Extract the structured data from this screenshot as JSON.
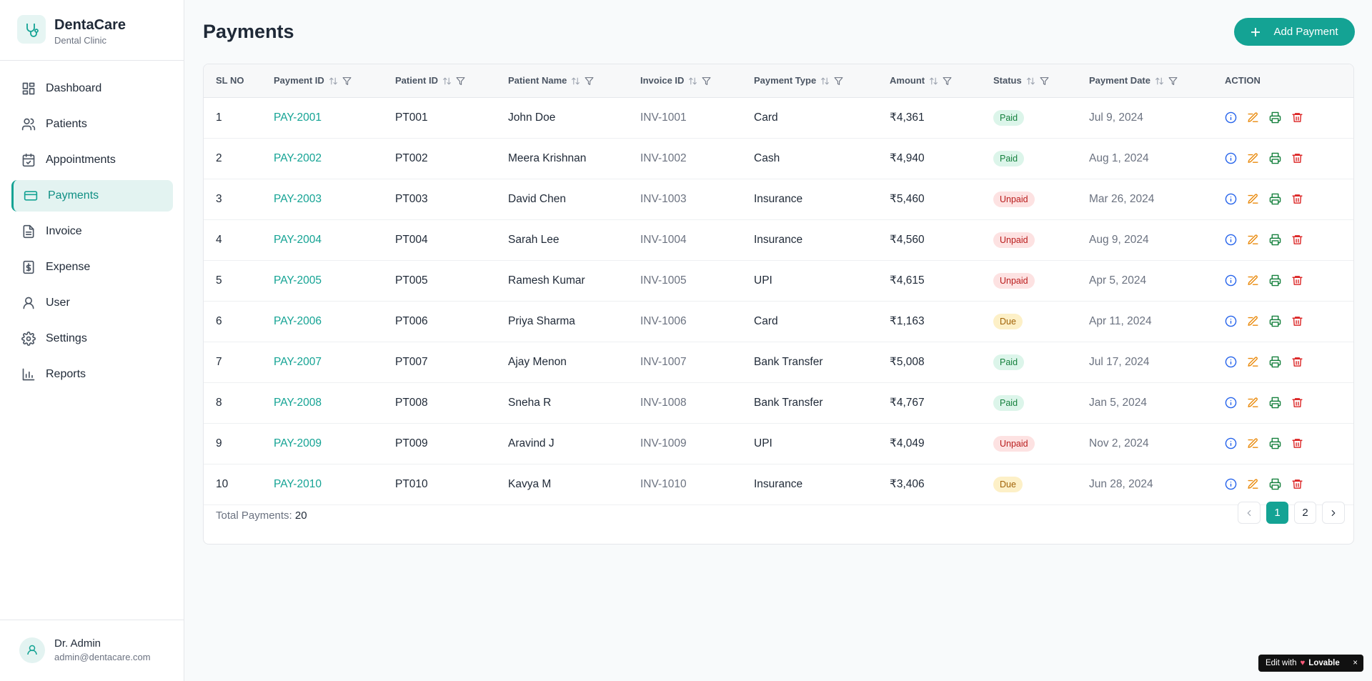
{
  "brand": {
    "name": "DentaCare",
    "subtitle": "Dental Clinic"
  },
  "nav": [
    "Dashboard",
    "Patients",
    "Appointments",
    "Payments",
    "Invoice",
    "Expense",
    "User",
    "Settings",
    "Reports"
  ],
  "user": {
    "name": "Dr. Admin",
    "email": "admin@dentacare.com"
  },
  "page": {
    "title": "Payments",
    "add_button": "Add Payment"
  },
  "table": {
    "headers": [
      "SL NO",
      "Payment ID",
      "Patient ID",
      "Patient Name",
      "Invoice ID",
      "Payment Type",
      "Amount",
      "Status",
      "Payment Date",
      "ACTION"
    ],
    "rows": [
      [
        "1",
        "PAY-2001",
        "PT001",
        "John Doe",
        "INV-1001",
        "Card",
        "₹4,361",
        "Paid",
        "Jul 9, 2024"
      ],
      [
        "2",
        "PAY-2002",
        "PT002",
        "Meera Krishnan",
        "INV-1002",
        "Cash",
        "₹4,940",
        "Paid",
        "Aug 1, 2024"
      ],
      [
        "3",
        "PAY-2003",
        "PT003",
        "David Chen",
        "INV-1003",
        "Insurance",
        "₹5,460",
        "Unpaid",
        "Mar 26, 2024"
      ],
      [
        "4",
        "PAY-2004",
        "PT004",
        "Sarah Lee",
        "INV-1004",
        "Insurance",
        "₹4,560",
        "Unpaid",
        "Aug 9, 2024"
      ],
      [
        "5",
        "PAY-2005",
        "PT005",
        "Ramesh Kumar",
        "INV-1005",
        "UPI",
        "₹4,615",
        "Unpaid",
        "Apr 5, 2024"
      ],
      [
        "6",
        "PAY-2006",
        "PT006",
        "Priya Sharma",
        "INV-1006",
        "Card",
        "₹1,163",
        "Due",
        "Apr 11, 2024"
      ],
      [
        "7",
        "PAY-2007",
        "PT007",
        "Ajay Menon",
        "INV-1007",
        "Bank Transfer",
        "₹5,008",
        "Paid",
        "Jul 17, 2024"
      ],
      [
        "8",
        "PAY-2008",
        "PT008",
        "Sneha R",
        "INV-1008",
        "Bank Transfer",
        "₹4,767",
        "Paid",
        "Jan 5, 2024"
      ],
      [
        "9",
        "PAY-2009",
        "PT009",
        "Aravind J",
        "INV-1009",
        "UPI",
        "₹4,049",
        "Unpaid",
        "Nov 2, 2024"
      ],
      [
        "10",
        "PAY-2010",
        "PT010",
        "Kavya M",
        "INV-1010",
        "Insurance",
        "₹3,406",
        "Due",
        "Jun 28, 2024"
      ]
    ]
  },
  "footer": {
    "total_label": "Total Payments:",
    "total": "20",
    "pages": [
      "1",
      "2"
    ]
  },
  "badge": {
    "text": "Edit with",
    "brand": "Lovable"
  }
}
